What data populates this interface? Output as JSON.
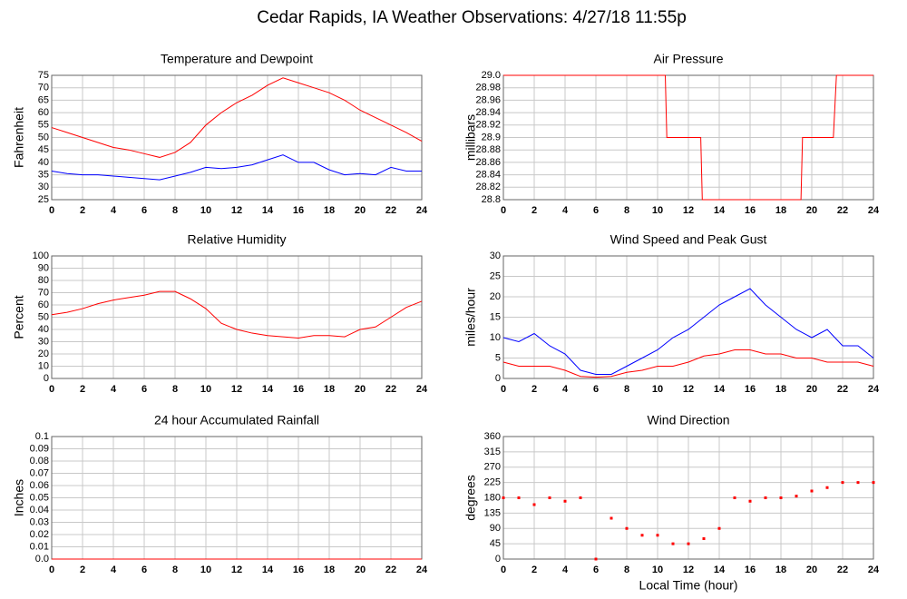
{
  "title": "Cedar Rapids, IA Weather Observations: 4/27/18 11:55p",
  "chart_data": [
    {
      "type": "line",
      "title": "Temperature and Dewpoint",
      "ylabel": "Fahrenheit",
      "x": [
        0,
        1,
        2,
        3,
        4,
        5,
        6,
        7,
        8,
        9,
        10,
        11,
        12,
        13,
        14,
        15,
        16,
        17,
        18,
        19,
        20,
        21,
        22,
        23,
        24
      ],
      "series": [
        {
          "color": "#ff0000",
          "values": [
            54,
            52,
            50,
            48,
            46,
            45,
            43.5,
            42,
            44,
            48,
            55,
            60,
            64,
            67,
            71,
            74,
            72,
            70,
            68,
            65,
            61,
            58,
            55,
            52,
            48.5
          ]
        },
        {
          "color": "#0000ff",
          "values": [
            36.5,
            35.5,
            35,
            35,
            34.5,
            34,
            33.5,
            33,
            34.5,
            36,
            38,
            37.5,
            38,
            39,
            41,
            43,
            40,
            40,
            37,
            35,
            35.5,
            35,
            38,
            36.5,
            36.5
          ]
        }
      ],
      "xlim": [
        0,
        24
      ],
      "xticks": [
        0,
        2,
        4,
        6,
        8,
        10,
        12,
        14,
        16,
        18,
        20,
        22,
        24
      ],
      "ylim": [
        25,
        75
      ],
      "yticks": [
        25,
        30,
        35,
        40,
        45,
        50,
        55,
        60,
        65,
        70,
        75
      ],
      "grid": true
    },
    {
      "type": "line",
      "title": "Air Pressure",
      "ylabel": "millibars",
      "x": [
        0,
        10.5,
        10.6,
        12.8,
        12.9,
        19.3,
        19.4,
        21.4,
        21.6,
        24
      ],
      "series": [
        {
          "color": "#ff0000",
          "values": [
            29.0,
            29.0,
            28.9,
            28.9,
            28.8,
            28.8,
            28.9,
            28.9,
            29.0,
            29.0
          ]
        }
      ],
      "xlim": [
        0,
        24
      ],
      "xticks": [
        0,
        2,
        4,
        6,
        8,
        10,
        12,
        14,
        16,
        18,
        20,
        22,
        24
      ],
      "ylim": [
        28.8,
        29.0
      ],
      "yticks": [
        28.8,
        28.82,
        28.84,
        28.86,
        28.88,
        28.9,
        28.92,
        28.94,
        28.96,
        28.98,
        {
          "value": 29.0,
          "label": "29.0"
        }
      ],
      "grid": true
    },
    {
      "type": "line",
      "title": "Relative Humidity",
      "ylabel": "Percent",
      "x": [
        0,
        1,
        2,
        3,
        4,
        5,
        6,
        7,
        8,
        9,
        10,
        11,
        12,
        13,
        14,
        15,
        16,
        17,
        18,
        19,
        20,
        21,
        22,
        23,
        24
      ],
      "series": [
        {
          "color": "#ff0000",
          "values": [
            52,
            54,
            57,
            61,
            64,
            66,
            68,
            71,
            71,
            65,
            57,
            45,
            40,
            37,
            35,
            34,
            33,
            35,
            35,
            34,
            40,
            42,
            50,
            58,
            63
          ]
        }
      ],
      "xlim": [
        0,
        24
      ],
      "xticks": [
        0,
        2,
        4,
        6,
        8,
        10,
        12,
        14,
        16,
        18,
        20,
        22,
        24
      ],
      "ylim": [
        0,
        100
      ],
      "yticks": [
        0,
        10,
        20,
        30,
        40,
        50,
        60,
        70,
        80,
        90,
        100
      ],
      "grid": true
    },
    {
      "type": "line",
      "title": "Wind Speed and Peak Gust",
      "ylabel": "miles/hour",
      "x": [
        0,
        1,
        2,
        3,
        4,
        5,
        6,
        7,
        8,
        9,
        10,
        11,
        12,
        13,
        14,
        15,
        16,
        17,
        18,
        19,
        20,
        21,
        22,
        23,
        24
      ],
      "series": [
        {
          "color": "#0000ff",
          "values": [
            10,
            9,
            11,
            8,
            6,
            2,
            1,
            1,
            3,
            5,
            7,
            10,
            12,
            15,
            18,
            20,
            22,
            18,
            15,
            12,
            10,
            12,
            8,
            8,
            5
          ]
        },
        {
          "color": "#ff0000",
          "values": [
            4,
            3,
            3,
            3,
            2,
            0.5,
            0.3,
            0.5,
            1.5,
            2,
            3,
            3,
            4,
            5.5,
            6,
            7,
            7,
            6,
            6,
            5,
            5,
            4,
            4,
            4,
            3
          ]
        }
      ],
      "xlim": [
        0,
        24
      ],
      "xticks": [
        0,
        2,
        4,
        6,
        8,
        10,
        12,
        14,
        16,
        18,
        20,
        22,
        24
      ],
      "ylim": [
        0,
        30
      ],
      "yticks": [
        0,
        5,
        10,
        15,
        20,
        25,
        30
      ],
      "grid": true
    },
    {
      "type": "line",
      "title": "24 hour Accumulated Rainfall",
      "ylabel": "Inches",
      "x": [
        0,
        24
      ],
      "series": [
        {
          "color": "#ff0000",
          "values": [
            0,
            0
          ]
        }
      ],
      "xlim": [
        0,
        24
      ],
      "xticks": [
        0,
        2,
        4,
        6,
        8,
        10,
        12,
        14,
        16,
        18,
        20,
        22,
        24
      ],
      "ylim": [
        0,
        0.1
      ],
      "yticks": [
        {
          "value": 0,
          "label": "0.0"
        },
        0.01,
        0.02,
        0.03,
        0.04,
        0.05,
        0.06,
        0.07,
        0.08,
        0.09,
        0.1
      ],
      "grid": true
    },
    {
      "type": "scatter",
      "title": "Wind Direction",
      "ylabel": "degrees",
      "xlabel": "Local Time (hour)",
      "x": [
        0,
        1,
        2,
        3,
        4,
        5,
        6,
        7,
        8,
        9,
        10,
        11,
        12,
        13,
        14,
        15,
        16,
        17,
        18,
        19,
        20,
        21,
        22,
        23,
        24
      ],
      "values": [
        180,
        180,
        160,
        180,
        170,
        180,
        0,
        120,
        90,
        70,
        70,
        45,
        45,
        60,
        90,
        180,
        170,
        180,
        180,
        185,
        200,
        210,
        225,
        225,
        225
      ],
      "color": "#ff0000",
      "xlim": [
        0,
        24
      ],
      "xticks": [
        0,
        2,
        4,
        6,
        8,
        10,
        12,
        14,
        16,
        18,
        20,
        22,
        24
      ],
      "ylim": [
        0,
        360
      ],
      "yticks": [
        0,
        45,
        90,
        135,
        180,
        225,
        270,
        315,
        360
      ],
      "grid": true
    }
  ]
}
